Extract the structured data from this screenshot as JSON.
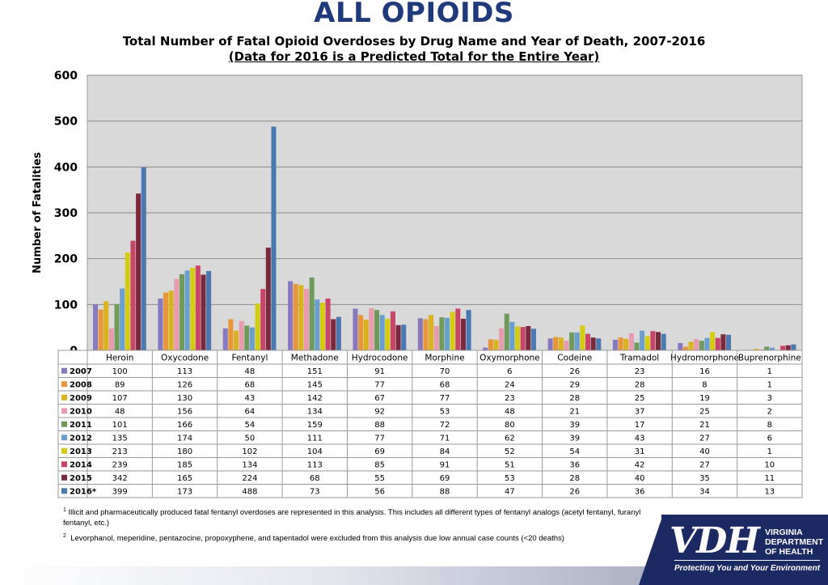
{
  "header": {
    "title": "ALL OPIOIDS",
    "subtitle": "Total Number of Fatal Opioid Overdoses by Drug Name and Year of Death, 2007-2016",
    "subtitle2": "(Data for 2016 is a Predicted Total for the Entire Year)"
  },
  "chart_data": {
    "type": "bar",
    "title": "Total Number of Fatal Opioid Overdoses by Drug Name and Year of Death, 2007-2016",
    "ylabel": "Number of Fatalities",
    "xlabel": "",
    "ylim": [
      0,
      600
    ],
    "yticks": [
      0,
      100,
      200,
      300,
      400,
      500,
      600
    ],
    "grid": true,
    "legend": "data table below chart",
    "categories": [
      "Heroin",
      "Oxycodone",
      "Fentanyl",
      "Methadone",
      "Hydrocodone",
      "Morphine",
      "Oxymorphone",
      "Codeine",
      "Tramadol",
      "Hydromorphone",
      "Buprenorphine"
    ],
    "series": [
      {
        "name": "2007",
        "color": "#8878c0",
        "values": [
          100,
          113,
          48,
          151,
          91,
          70,
          6,
          26,
          23,
          16,
          1
        ]
      },
      {
        "name": "2008",
        "color": "#e8963a",
        "values": [
          89,
          126,
          68,
          145,
          77,
          68,
          24,
          29,
          28,
          8,
          1
        ]
      },
      {
        "name": "2009",
        "color": "#d9b21e",
        "values": [
          107,
          130,
          43,
          142,
          67,
          77,
          23,
          28,
          25,
          19,
          3
        ]
      },
      {
        "name": "2010",
        "color": "#e89aae",
        "values": [
          48,
          156,
          64,
          134,
          92,
          53,
          48,
          21,
          37,
          25,
          2
        ]
      },
      {
        "name": "2011",
        "color": "#6f9a5a",
        "values": [
          101,
          166,
          54,
          159,
          88,
          72,
          80,
          39,
          17,
          21,
          8
        ]
      },
      {
        "name": "2012",
        "color": "#6a9ed0",
        "values": [
          135,
          174,
          50,
          111,
          77,
          71,
          62,
          39,
          43,
          27,
          6
        ]
      },
      {
        "name": "2013",
        "color": "#d4cc10",
        "values": [
          213,
          180,
          102,
          104,
          69,
          84,
          52,
          54,
          31,
          40,
          1
        ]
      },
      {
        "name": "2014",
        "color": "#c8456a",
        "values": [
          239,
          185,
          134,
          113,
          85,
          91,
          51,
          36,
          42,
          27,
          10
        ]
      },
      {
        "name": "2015",
        "color": "#7a2a3c",
        "values": [
          342,
          165,
          224,
          68,
          55,
          69,
          53,
          28,
          40,
          35,
          11
        ]
      },
      {
        "name": "2016*",
        "color": "#4a78b0",
        "values": [
          399,
          173,
          488,
          73,
          56,
          88,
          47,
          26,
          36,
          34,
          13
        ]
      }
    ]
  },
  "notes": {
    "note1_marker": "1",
    "note1": "Illicit and pharmaceutically produced fatal fentanyl overdoses are represented in this analysis. This includes all different types of fentanyl analogs  (acetyl fentanyl, furanyl fentanyl, etc.)",
    "note2_marker": "2",
    "note2": "Levorphanol, meperidine, pentazocine, propoxyphene, and tapentadol were excluded from this analysis due low annual case counts (<20 deaths)"
  },
  "logo": {
    "mark": "VDH",
    "line1": "VIRGINIA",
    "line2": "DEPARTMENT",
    "line3": "OF HEALTH",
    "tagline": "Protecting You and Your Environment"
  }
}
